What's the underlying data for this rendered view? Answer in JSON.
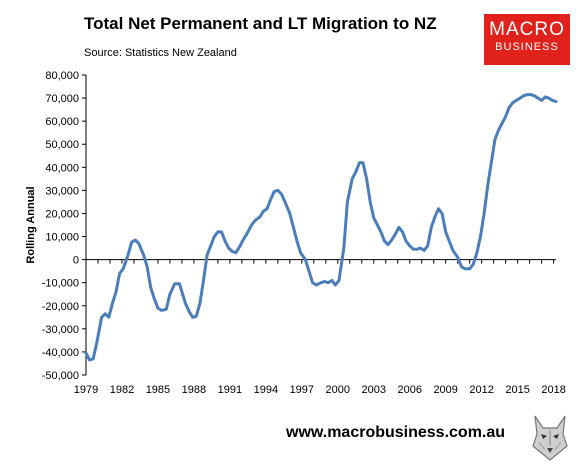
{
  "header": {
    "title": "Total Net Permanent and LT Migration to NZ",
    "source": "Source: Statistics New Zealand"
  },
  "logo": {
    "line1": "MACRO",
    "line2": "BUSINESS"
  },
  "footer": {
    "url": "www.macrobusiness.com.au"
  },
  "chart_data": {
    "type": "line",
    "title": "Total Net Permanent and LT Migration to NZ",
    "subtitle": "Source: Statistics New Zealand",
    "ylabel": "Rolling Annual",
    "xlabel": "",
    "xlim": [
      1979,
      2018.2
    ],
    "ylim": [
      -50000,
      80000
    ],
    "grid": false,
    "legend": "none",
    "x_ticks": [
      1979,
      1982,
      1985,
      1988,
      1991,
      1994,
      1997,
      2000,
      2003,
      2006,
      2009,
      2012,
      2015,
      2018
    ],
    "y_ticks": [
      -50000,
      -40000,
      -30000,
      -20000,
      -10000,
      0,
      10000,
      20000,
      30000,
      40000,
      50000,
      60000,
      70000,
      80000
    ],
    "y_tick_labels": [
      "-50,000",
      "-40,000",
      "-30,000",
      "-20,000",
      "-10,000",
      "0",
      "10,000",
      "20,000",
      "30,000",
      "40,000",
      "50,000",
      "60,000",
      "70,000",
      "80,000"
    ],
    "series_color": "#4a7ebb",
    "series": [
      {
        "x": [
          1979.0,
          1979.3,
          1979.6,
          1979.9,
          1980.3,
          1980.6,
          1980.9,
          1981.2,
          1981.5,
          1981.8,
          1982.1,
          1982.5,
          1982.8,
          1983.1,
          1983.4,
          1983.8,
          1984.1,
          1984.4,
          1984.7,
          1985.0,
          1985.3,
          1985.7,
          1986.0,
          1986.4,
          1986.8,
          1987.0,
          1987.3,
          1987.6,
          1987.9,
          1988.2,
          1988.5,
          1988.8,
          1989.1,
          1989.4,
          1989.7,
          1990.0,
          1990.3,
          1990.6,
          1990.9,
          1991.2,
          1991.5,
          1991.8,
          1992.1,
          1992.4,
          1992.8,
          1993.1,
          1993.5,
          1993.8,
          1994.1,
          1994.4,
          1994.7,
          1995.0,
          1995.3,
          1995.6,
          1996.0,
          1996.3,
          1996.6,
          1996.9,
          1997.3,
          1997.6,
          1997.9,
          1998.2,
          1998.6,
          1998.9,
          1999.2,
          1999.5,
          1999.8,
          2000.1,
          2000.5,
          2000.8,
          2001.2,
          2001.5,
          2001.8,
          2002.1,
          2002.4,
          2002.7,
          2003.0,
          2003.3,
          2003.6,
          2003.9,
          2004.2,
          2004.5,
          2004.8,
          2005.1,
          2005.4,
          2005.7,
          2006.0,
          2006.3,
          2006.6,
          2006.9,
          2007.2,
          2007.5,
          2007.8,
          2008.1,
          2008.4,
          2008.7,
          2009.0,
          2009.3,
          2009.6,
          2010.0,
          2010.3,
          2010.6,
          2011.0,
          2011.3,
          2011.6,
          2011.9,
          2012.2,
          2012.5,
          2012.8,
          2013.1,
          2013.4,
          2013.7,
          2014.0,
          2014.3,
          2014.6,
          2014.9,
          2015.2,
          2015.5,
          2015.8,
          2016.1,
          2016.4,
          2016.7,
          2017.0,
          2017.3,
          2017.6,
          2017.9,
          2018.2
        ],
        "y": [
          -40500,
          -43500,
          -43000,
          -36000,
          -25000,
          -23500,
          -25000,
          -19000,
          -14000,
          -6000,
          -4000,
          2000,
          7500,
          8500,
          7000,
          2000,
          -3000,
          -12000,
          -17000,
          -21000,
          -22000,
          -21500,
          -15000,
          -10500,
          -10500,
          -14000,
          -19000,
          -22500,
          -25000,
          -24500,
          -19000,
          -9000,
          2000,
          6000,
          10000,
          12000,
          12000,
          8000,
          5000,
          3500,
          3000,
          5500,
          8500,
          11000,
          15000,
          17000,
          18500,
          21000,
          22000,
          26000,
          29500,
          30000,
          28500,
          25000,
          20000,
          14000,
          8000,
          3000,
          0,
          -5000,
          -10000,
          -11000,
          -10000,
          -9500,
          -10000,
          -9000,
          -11000,
          -9000,
          5000,
          25000,
          35000,
          38000,
          42000,
          42000,
          35000,
          25000,
          18000,
          15000,
          12000,
          8000,
          6500,
          8500,
          11000,
          14000,
          12000,
          8000,
          6000,
          4500,
          4500,
          5000,
          4000,
          6000,
          14000,
          18500,
          22000,
          20000,
          12000,
          8000,
          4000,
          1000,
          -3000,
          -4000,
          -4000,
          -2000,
          3000,
          10000,
          20000,
          32000,
          42000,
          52000,
          56000,
          59000,
          62000,
          66000,
          68000,
          69000,
          70000,
          71000,
          71500,
          71500,
          71000,
          70000,
          69000,
          70500,
          70000,
          69000,
          68500
        ]
      }
    ]
  }
}
